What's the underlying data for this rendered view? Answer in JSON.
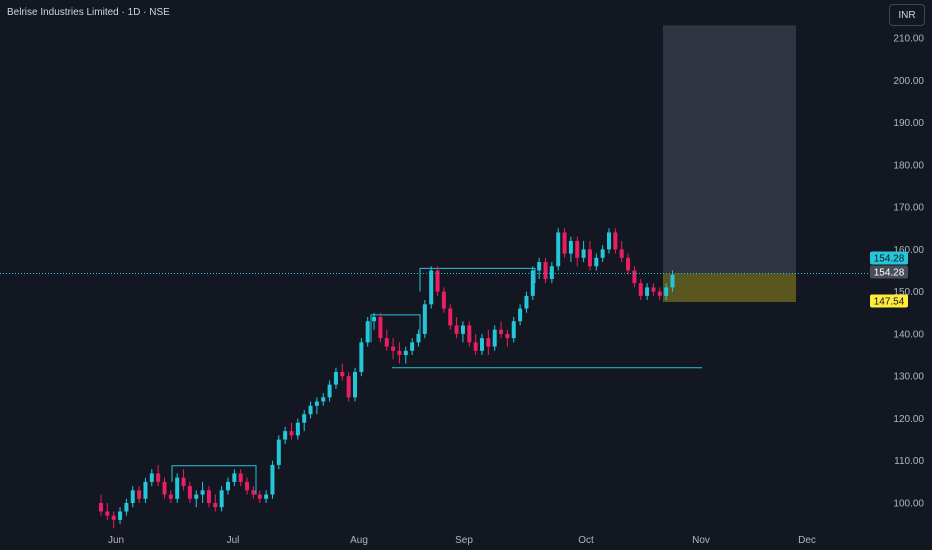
{
  "header": {
    "title": "Belrise Industries Limited · 1D · NSE",
    "currency": "INR"
  },
  "colors": {
    "background": "#131722",
    "up": "#26c6da",
    "down": "#e91e63",
    "target_zone": "#363a45",
    "stop_zone": "#6b6620",
    "price_line": "#26c6da",
    "stop_tag": "#ffeb3b",
    "grid_text": "#b2b5be"
  },
  "chart_data": {
    "type": "candlestick",
    "y_axis": {
      "ticks": [
        "210.00",
        "200.00",
        "190.00",
        "180.00",
        "170.00",
        "160.00",
        "150.00",
        "140.00",
        "130.00",
        "120.00",
        "110.00",
        "100.00"
      ],
      "range": [
        94,
        212
      ]
    },
    "x_axis": {
      "ticks": [
        "Jun",
        "Jul",
        "Aug",
        "Sep",
        "Oct",
        "Nov",
        "Dec"
      ]
    },
    "price_tags": {
      "last": "154.28",
      "entry": "154.28",
      "stop": "147.54"
    },
    "position_tool": {
      "entry": 154.28,
      "stop": 147.54,
      "target": 213
    },
    "support_line": 132,
    "candles": [
      [
        100,
        102,
        97,
        98
      ],
      [
        98,
        100,
        96,
        97
      ],
      [
        97,
        98,
        94,
        96
      ],
      [
        96,
        99,
        95,
        98
      ],
      [
        98,
        101,
        97,
        100
      ],
      [
        100,
        104,
        99,
        103
      ],
      [
        103,
        104,
        100,
        101
      ],
      [
        101,
        106,
        100,
        105
      ],
      [
        105,
        108,
        104,
        107
      ],
      [
        107,
        109,
        104,
        105
      ],
      [
        105,
        106,
        101,
        102
      ],
      [
        102,
        103,
        100,
        101
      ],
      [
        101,
        107,
        100,
        106
      ],
      [
        106,
        108,
        103,
        104
      ],
      [
        104,
        105,
        100,
        101
      ],
      [
        101,
        103,
        99,
        102
      ],
      [
        102,
        105,
        100,
        103
      ],
      [
        103,
        104,
        99,
        100
      ],
      [
        100,
        102,
        98,
        99
      ],
      [
        99,
        104,
        98,
        103
      ],
      [
        103,
        106,
        102,
        105
      ],
      [
        105,
        108,
        104,
        107
      ],
      [
        107,
        108,
        104,
        105
      ],
      [
        105,
        106,
        102,
        103
      ],
      [
        103,
        104,
        101,
        102
      ],
      [
        102,
        103,
        100,
        101
      ],
      [
        101,
        103,
        100,
        102
      ],
      [
        102,
        110,
        101,
        109
      ],
      [
        109,
        116,
        108,
        115
      ],
      [
        115,
        118,
        114,
        117
      ],
      [
        117,
        119,
        115,
        116
      ],
      [
        116,
        120,
        115,
        119
      ],
      [
        119,
        122,
        117,
        121
      ],
      [
        121,
        124,
        120,
        123
      ],
      [
        123,
        125,
        121,
        124
      ],
      [
        124,
        126,
        123,
        125
      ],
      [
        125,
        129,
        124,
        128
      ],
      [
        128,
        132,
        127,
        131
      ],
      [
        131,
        133,
        129,
        130
      ],
      [
        130,
        131,
        124,
        125
      ],
      [
        125,
        132,
        124,
        131
      ],
      [
        131,
        139,
        130,
        138
      ],
      [
        138,
        144,
        137,
        143
      ],
      [
        143,
        145,
        141,
        144
      ],
      [
        144,
        145,
        138,
        139
      ],
      [
        139,
        141,
        136,
        137
      ],
      [
        137,
        139,
        134,
        136
      ],
      [
        136,
        138,
        133,
        135
      ],
      [
        135,
        137,
        133,
        136
      ],
      [
        136,
        139,
        135,
        138
      ],
      [
        138,
        141,
        137,
        140
      ],
      [
        140,
        148,
        139,
        147
      ],
      [
        147,
        156,
        146,
        155
      ],
      [
        155,
        156,
        149,
        150
      ],
      [
        150,
        151,
        145,
        146
      ],
      [
        146,
        147,
        141,
        142
      ],
      [
        142,
        144,
        139,
        140
      ],
      [
        140,
        143,
        138,
        142
      ],
      [
        142,
        143,
        137,
        138
      ],
      [
        138,
        140,
        135,
        136
      ],
      [
        136,
        140,
        135,
        139
      ],
      [
        139,
        141,
        135,
        137
      ],
      [
        137,
        142,
        136,
        141
      ],
      [
        141,
        143,
        139,
        140
      ],
      [
        140,
        141,
        137,
        139
      ],
      [
        139,
        144,
        138,
        143
      ],
      [
        143,
        147,
        142,
        146
      ],
      [
        146,
        150,
        145,
        149
      ],
      [
        149,
        156,
        148,
        155
      ],
      [
        155,
        158,
        153,
        157
      ],
      [
        157,
        158,
        152,
        153
      ],
      [
        153,
        157,
        152,
        156
      ],
      [
        156,
        165,
        155,
        164
      ],
      [
        164,
        165,
        158,
        159
      ],
      [
        159,
        163,
        157,
        162
      ],
      [
        162,
        163,
        156,
        158
      ],
      [
        158,
        162,
        157,
        160
      ],
      [
        160,
        162,
        155,
        156
      ],
      [
        156,
        159,
        155,
        158
      ],
      [
        158,
        161,
        157,
        160
      ],
      [
        160,
        165,
        159,
        164
      ],
      [
        164,
        165,
        159,
        160
      ],
      [
        160,
        162,
        157,
        158
      ],
      [
        158,
        159,
        154,
        155
      ],
      [
        155,
        156,
        151,
        152
      ],
      [
        152,
        153,
        148,
        149
      ],
      [
        149,
        152,
        148,
        151
      ],
      [
        151,
        152,
        149,
        150
      ],
      [
        150,
        151,
        148,
        149
      ],
      [
        149,
        152,
        148,
        151
      ],
      [
        151,
        155,
        150,
        154
      ]
    ]
  }
}
